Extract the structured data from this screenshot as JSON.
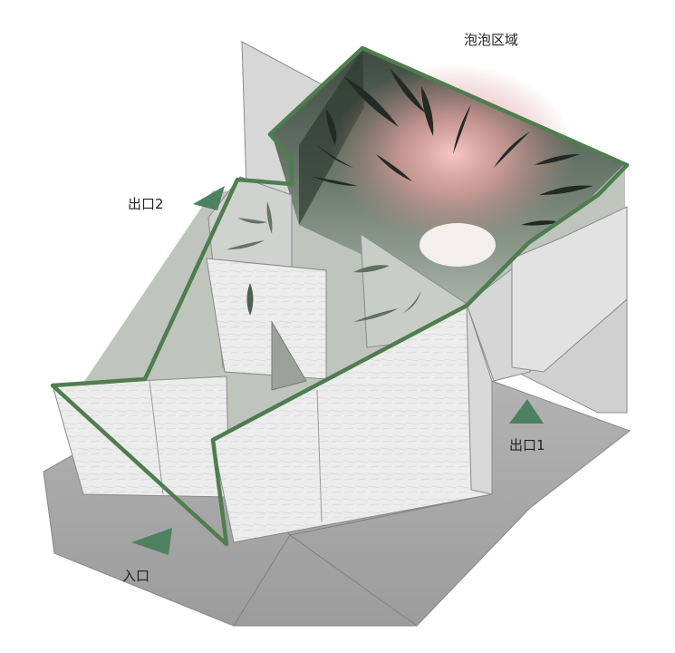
{
  "labels": {
    "bubble_zone": "泡泡区域",
    "exit_2": "出口2",
    "exit_1": "出口1",
    "entrance": "入口"
  },
  "colors": {
    "outline_green": "#4f7d50",
    "arrow_green": "#4e8160",
    "glow_pink": "#ffb4b4",
    "wall_light": "#ebebeb",
    "floor_gray": "#a9a9a9"
  }
}
